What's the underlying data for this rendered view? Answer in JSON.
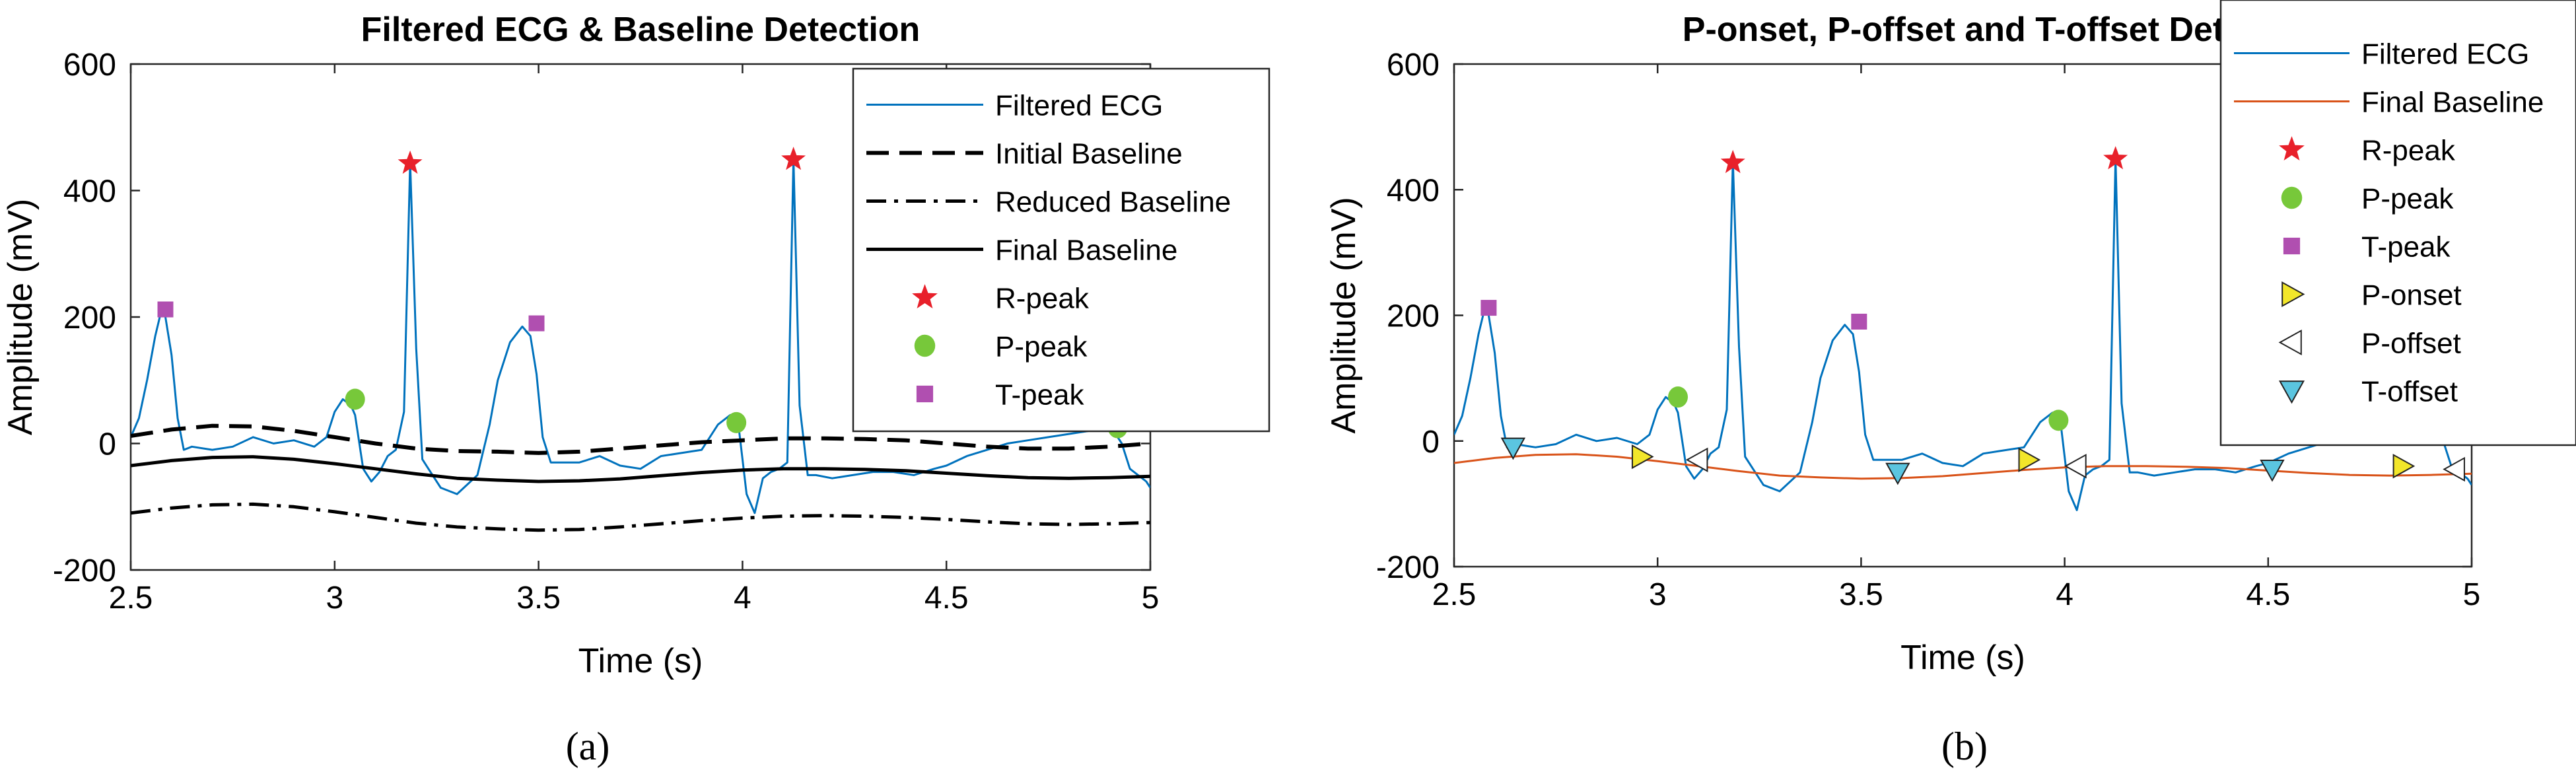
{
  "figure": {
    "panels": [
      "(a)",
      "(b)"
    ]
  },
  "colors": {
    "ecg": "#0072BD",
    "final_baseline_b": "#D95319",
    "r_peak": "#E8202A",
    "p_peak": "#77C83A",
    "t_peak": "#B04FB0",
    "p_onset": "#F2E62A",
    "p_offset": "#FFFFFF",
    "t_offset": "#5BC5E0"
  },
  "chart_data": [
    {
      "type": "line",
      "title": "Filtered ECG & Baseline Detection",
      "xlabel": "Time (s)",
      "ylabel": "Amplitude (mV)",
      "xlim": [
        2.5,
        5
      ],
      "ylim": [
        -200,
        600
      ],
      "xticks": [
        2.5,
        3,
        3.5,
        4,
        4.5,
        5
      ],
      "xtick_labels": [
        "2.5",
        "3",
        "3.5",
        "4",
        "4.5",
        "5"
      ],
      "yticks": [
        -200,
        0,
        200,
        400,
        600
      ],
      "ytick_labels": [
        "-200",
        "0",
        "200",
        "400",
        "600"
      ],
      "legend_position": "top-right",
      "series": [
        {
          "name": "Filtered ECG",
          "style": "solid-thin",
          "color": "#0072BD",
          "x": [
            2.5,
            2.52,
            2.54,
            2.56,
            2.575,
            2.585,
            2.6,
            2.615,
            2.63,
            2.65,
            2.7,
            2.75,
            2.8,
            2.85,
            2.9,
            2.95,
            2.98,
            3.0,
            3.02,
            3.04,
            3.05,
            3.07,
            3.09,
            3.11,
            3.13,
            3.15,
            3.17,
            3.185,
            3.2,
            3.215,
            3.23,
            3.26,
            3.3,
            3.35,
            3.38,
            3.4,
            3.43,
            3.46,
            3.48,
            3.495,
            3.51,
            3.53,
            3.56,
            3.6,
            3.65,
            3.7,
            3.75,
            3.8,
            3.85,
            3.9,
            3.94,
            3.97,
            3.99,
            4.01,
            4.03,
            4.05,
            4.07,
            4.09,
            4.11,
            4.125,
            4.14,
            4.16,
            4.18,
            4.22,
            4.27,
            4.32,
            4.37,
            4.42,
            4.47,
            4.5,
            4.55,
            4.6,
            4.65,
            4.7,
            4.75,
            4.8,
            4.85,
            4.88,
            4.9,
            4.91,
            4.93,
            4.95,
            4.97,
            4.99,
            5.0
          ],
          "values": [
            10,
            40,
            100,
            170,
            210,
            200,
            140,
            40,
            -10,
            -5,
            -10,
            -5,
            10,
            0,
            5,
            -5,
            10,
            50,
            70,
            60,
            45,
            -40,
            -60,
            -45,
            -20,
            -10,
            50,
            445,
            150,
            -25,
            -40,
            -70,
            -80,
            -50,
            30,
            100,
            160,
            185,
            170,
            110,
            10,
            -30,
            -30,
            -30,
            -20,
            -35,
            -40,
            -20,
            -15,
            -10,
            30,
            45,
            30,
            -80,
            -110,
            -55,
            -45,
            -40,
            -30,
            450,
            60,
            -50,
            -50,
            -55,
            -50,
            -45,
            -45,
            -50,
            -40,
            -35,
            -20,
            -10,
            0,
            5,
            10,
            15,
            20,
            20,
            25,
            20,
            0,
            -40,
            -50,
            -60,
            -70
          ]
        },
        {
          "name": "Initial Baseline",
          "style": "dashed",
          "color": "#000000",
          "x": [
            2.5,
            2.6,
            2.7,
            2.8,
            2.9,
            3.0,
            3.1,
            3.2,
            3.3,
            3.4,
            3.5,
            3.6,
            3.7,
            3.8,
            3.9,
            4.0,
            4.1,
            4.2,
            4.3,
            4.4,
            4.5,
            4.6,
            4.7,
            4.8,
            4.9,
            5.0
          ],
          "values": [
            12,
            22,
            28,
            27,
            20,
            10,
            0,
            -8,
            -12,
            -13,
            -15,
            -13,
            -8,
            -3,
            2,
            5,
            8,
            8,
            7,
            5,
            0,
            -5,
            -8,
            -8,
            -5,
            0
          ]
        },
        {
          "name": "Reduced Baseline",
          "style": "dashdot",
          "color": "#000000",
          "x": [
            2.5,
            2.6,
            2.7,
            2.8,
            2.9,
            3.0,
            3.1,
            3.2,
            3.3,
            3.4,
            3.5,
            3.6,
            3.7,
            3.8,
            3.9,
            4.0,
            4.1,
            4.2,
            4.3,
            4.4,
            4.5,
            4.6,
            4.7,
            4.8,
            4.9,
            5.0
          ],
          "values": [
            -110,
            -102,
            -97,
            -96,
            -100,
            -108,
            -117,
            -126,
            -132,
            -135,
            -137,
            -136,
            -132,
            -127,
            -122,
            -118,
            -115,
            -114,
            -115,
            -117,
            -120,
            -124,
            -127,
            -128,
            -127,
            -125
          ]
        },
        {
          "name": "Final Baseline",
          "style": "solid-thick",
          "color": "#000000",
          "x": [
            2.5,
            2.6,
            2.7,
            2.8,
            2.9,
            3.0,
            3.1,
            3.2,
            3.3,
            3.4,
            3.5,
            3.6,
            3.7,
            3.8,
            3.9,
            4.0,
            4.1,
            4.2,
            4.3,
            4.4,
            4.5,
            4.6,
            4.7,
            4.8,
            4.9,
            5.0
          ],
          "values": [
            -35,
            -27,
            -22,
            -21,
            -25,
            -32,
            -40,
            -48,
            -55,
            -58,
            -60,
            -59,
            -56,
            -51,
            -46,
            -42,
            -40,
            -40,
            -41,
            -43,
            -47,
            -51,
            -54,
            -55,
            -54,
            -52
          ]
        },
        {
          "name": "R-peak",
          "style": "star",
          "color": "#E8202A",
          "x": [
            3.185,
            4.125
          ],
          "values": [
            443,
            449
          ]
        },
        {
          "name": "P-peak",
          "style": "circle",
          "color": "#77C83A",
          "x": [
            3.05,
            3.985,
            4.92
          ],
          "values": [
            70,
            33,
            25
          ]
        },
        {
          "name": "T-peak",
          "style": "square",
          "color": "#B04FB0",
          "x": [
            2.585,
            3.495
          ],
          "values": [
            212,
            190
          ]
        }
      ],
      "legend": [
        "Filtered ECG",
        "Initial Baseline",
        "Reduced Baseline",
        "Final Baseline",
        "R-peak",
        "P-peak",
        "T-peak"
      ]
    },
    {
      "type": "line",
      "title": "P-onset, P-offset and T-offset Dete",
      "xlabel": "Time (s)",
      "ylabel": "Amplitude (mV)",
      "xlim": [
        2.5,
        5
      ],
      "ylim": [
        -200,
        600
      ],
      "xticks": [
        2.5,
        3,
        3.5,
        4,
        4.5,
        5
      ],
      "xtick_labels": [
        "2.5",
        "3",
        "3.5",
        "4",
        "4.5",
        "5"
      ],
      "yticks": [
        -200,
        0,
        200,
        400,
        600
      ],
      "ytick_labels": [
        "-200",
        "0",
        "200",
        "400",
        "600"
      ],
      "legend_position": "top-right",
      "series": [
        {
          "name": "Filtered ECG",
          "style": "solid-thin",
          "color": "#0072BD",
          "x": [
            2.5,
            2.52,
            2.54,
            2.56,
            2.575,
            2.585,
            2.6,
            2.615,
            2.63,
            2.65,
            2.7,
            2.75,
            2.8,
            2.85,
            2.9,
            2.95,
            2.98,
            3.0,
            3.02,
            3.04,
            3.05,
            3.07,
            3.09,
            3.11,
            3.13,
            3.15,
            3.17,
            3.185,
            3.2,
            3.215,
            3.23,
            3.26,
            3.3,
            3.35,
            3.38,
            3.4,
            3.43,
            3.46,
            3.48,
            3.495,
            3.51,
            3.53,
            3.56,
            3.6,
            3.65,
            3.7,
            3.75,
            3.8,
            3.85,
            3.9,
            3.94,
            3.97,
            3.99,
            4.01,
            4.03,
            4.05,
            4.07,
            4.09,
            4.11,
            4.125,
            4.14,
            4.16,
            4.18,
            4.22,
            4.27,
            4.32,
            4.37,
            4.42,
            4.47,
            4.5,
            4.55,
            4.6,
            4.65,
            4.7,
            4.75,
            4.8,
            4.85,
            4.88,
            4.9,
            4.91,
            4.93,
            4.95,
            4.97,
            4.99,
            5.0
          ],
          "values": [
            10,
            40,
            100,
            170,
            210,
            200,
            140,
            40,
            -10,
            -5,
            -10,
            -5,
            10,
            0,
            5,
            -5,
            10,
            50,
            70,
            60,
            45,
            -40,
            -60,
            -45,
            -20,
            -10,
            50,
            445,
            150,
            -25,
            -40,
            -70,
            -80,
            -50,
            30,
            100,
            160,
            185,
            170,
            110,
            10,
            -30,
            -30,
            -30,
            -20,
            -35,
            -40,
            -20,
            -15,
            -10,
            30,
            45,
            30,
            -80,
            -110,
            -55,
            -45,
            -40,
            -30,
            450,
            60,
            -50,
            -50,
            -55,
            -50,
            -45,
            -45,
            -50,
            -40,
            -35,
            -20,
            -10,
            0,
            5,
            10,
            15,
            20,
            20,
            25,
            20,
            0,
            -40,
            -50,
            -60,
            -70
          ]
        },
        {
          "name": "Final Baseline",
          "style": "solid-thin",
          "color": "#D95319",
          "x": [
            2.5,
            2.6,
            2.7,
            2.8,
            2.9,
            3.0,
            3.1,
            3.2,
            3.3,
            3.4,
            3.5,
            3.6,
            3.7,
            3.8,
            3.9,
            4.0,
            4.1,
            4.2,
            4.3,
            4.4,
            4.5,
            4.6,
            4.7,
            4.8,
            4.9,
            5.0
          ],
          "values": [
            -35,
            -27,
            -22,
            -21,
            -25,
            -32,
            -40,
            -48,
            -55,
            -58,
            -60,
            -59,
            -56,
            -51,
            -46,
            -42,
            -40,
            -40,
            -41,
            -43,
            -47,
            -51,
            -54,
            -55,
            -54,
            -52
          ]
        },
        {
          "name": "R-peak",
          "style": "star",
          "color": "#E8202A",
          "x": [
            3.185,
            4.125
          ],
          "values": [
            443,
            449
          ]
        },
        {
          "name": "P-peak",
          "style": "circle",
          "color": "#77C83A",
          "x": [
            3.05,
            3.985,
            4.92
          ],
          "values": [
            70,
            33,
            25
          ]
        },
        {
          "name": "T-peak",
          "style": "square",
          "color": "#B04FB0",
          "x": [
            2.585,
            3.495
          ],
          "values": [
            212,
            190
          ]
        },
        {
          "name": "P-onset",
          "style": "triangle-right",
          "color": "#F2E62A",
          "x": [
            2.96,
            3.91,
            4.83
          ],
          "values": [
            -25,
            -30,
            -40
          ]
        },
        {
          "name": "P-offset",
          "style": "triangle-left",
          "color": "#FFFFFF",
          "x": [
            3.1,
            4.03,
            4.96
          ],
          "values": [
            -30,
            -40,
            -45
          ]
        },
        {
          "name": "T-offset",
          "style": "triangle-down",
          "color": "#5BC5E0",
          "x": [
            2.645,
            3.59,
            4.51
          ],
          "values": [
            -10,
            -50,
            -45
          ]
        }
      ],
      "legend": [
        "Filtered ECG",
        "Final Baseline",
        "R-peak",
        "P-peak",
        "T-peak",
        "P-onset",
        "P-offset",
        "T-offset"
      ]
    }
  ]
}
